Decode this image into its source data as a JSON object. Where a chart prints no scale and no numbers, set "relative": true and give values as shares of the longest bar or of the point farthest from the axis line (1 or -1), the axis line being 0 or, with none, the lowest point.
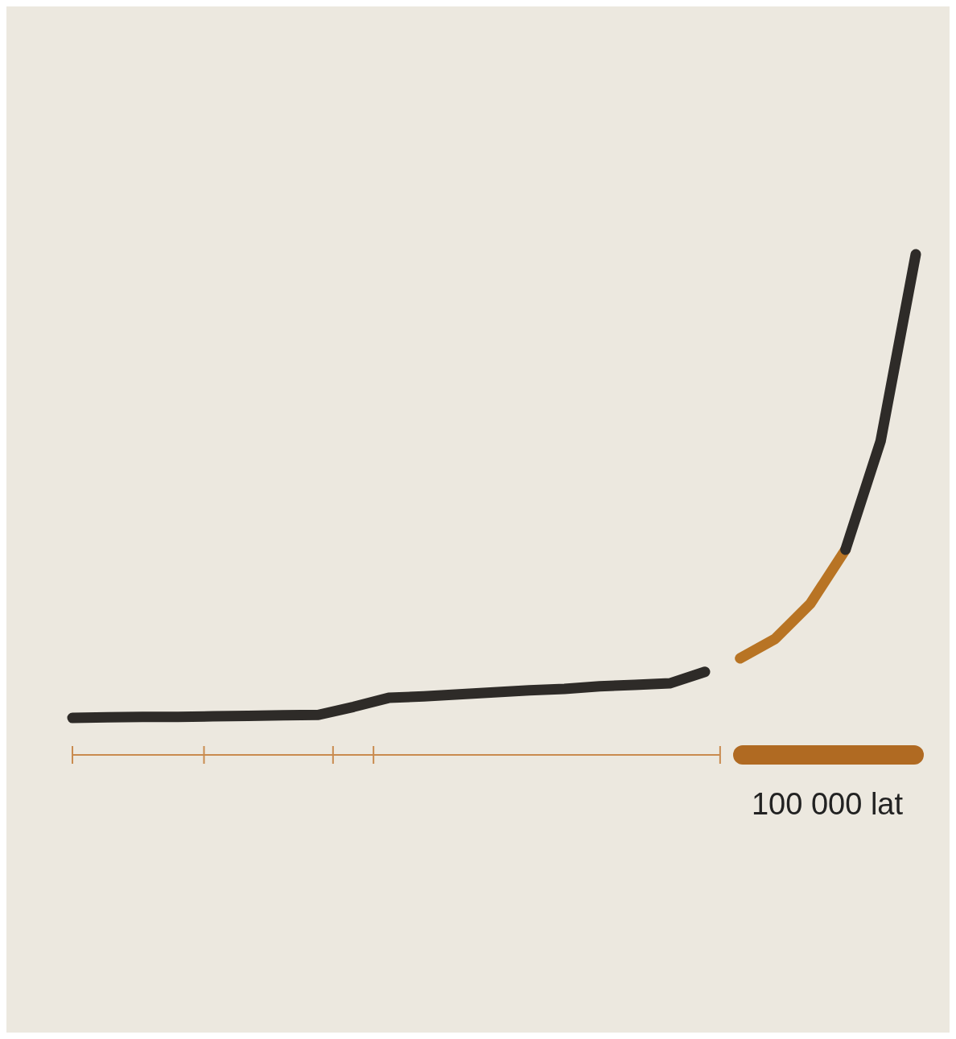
{
  "chart_data": {
    "type": "line",
    "relative": true,
    "categories": [
      null,
      null,
      null,
      null,
      null,
      null,
      null,
      null,
      null,
      null,
      null,
      null,
      null,
      null,
      null,
      null,
      null,
      null,
      null,
      null,
      null,
      null,
      null,
      null,
      null
    ],
    "series": [
      {
        "color": "#2e2b28",
        "values": [
          0.074,
          0.075,
          0.076,
          0.076,
          0.077,
          0.078,
          0.079,
          0.08,
          0.096,
          0.114,
          0.117,
          0.121,
          0.125,
          0.129,
          0.132,
          0.137,
          0.14,
          0.143,
          0.166,
          null,
          null,
          null,
          null,
          null,
          null
        ]
      },
      {
        "color": "#b87424",
        "values": [
          null,
          null,
          null,
          null,
          null,
          null,
          null,
          null,
          null,
          null,
          null,
          null,
          null,
          null,
          null,
          null,
          null,
          null,
          null,
          0.193,
          0.232,
          0.302,
          0.41,
          null,
          null
        ]
      },
      {
        "color": "#2e2b28",
        "values": [
          null,
          null,
          null,
          null,
          null,
          null,
          null,
          null,
          null,
          null,
          null,
          null,
          null,
          null,
          null,
          null,
          null,
          null,
          null,
          null,
          null,
          null,
          0.41,
          0.627,
          1
        ]
      }
    ],
    "annotations": [
      "100 000 lat"
    ],
    "line_style": "solid"
  }
}
